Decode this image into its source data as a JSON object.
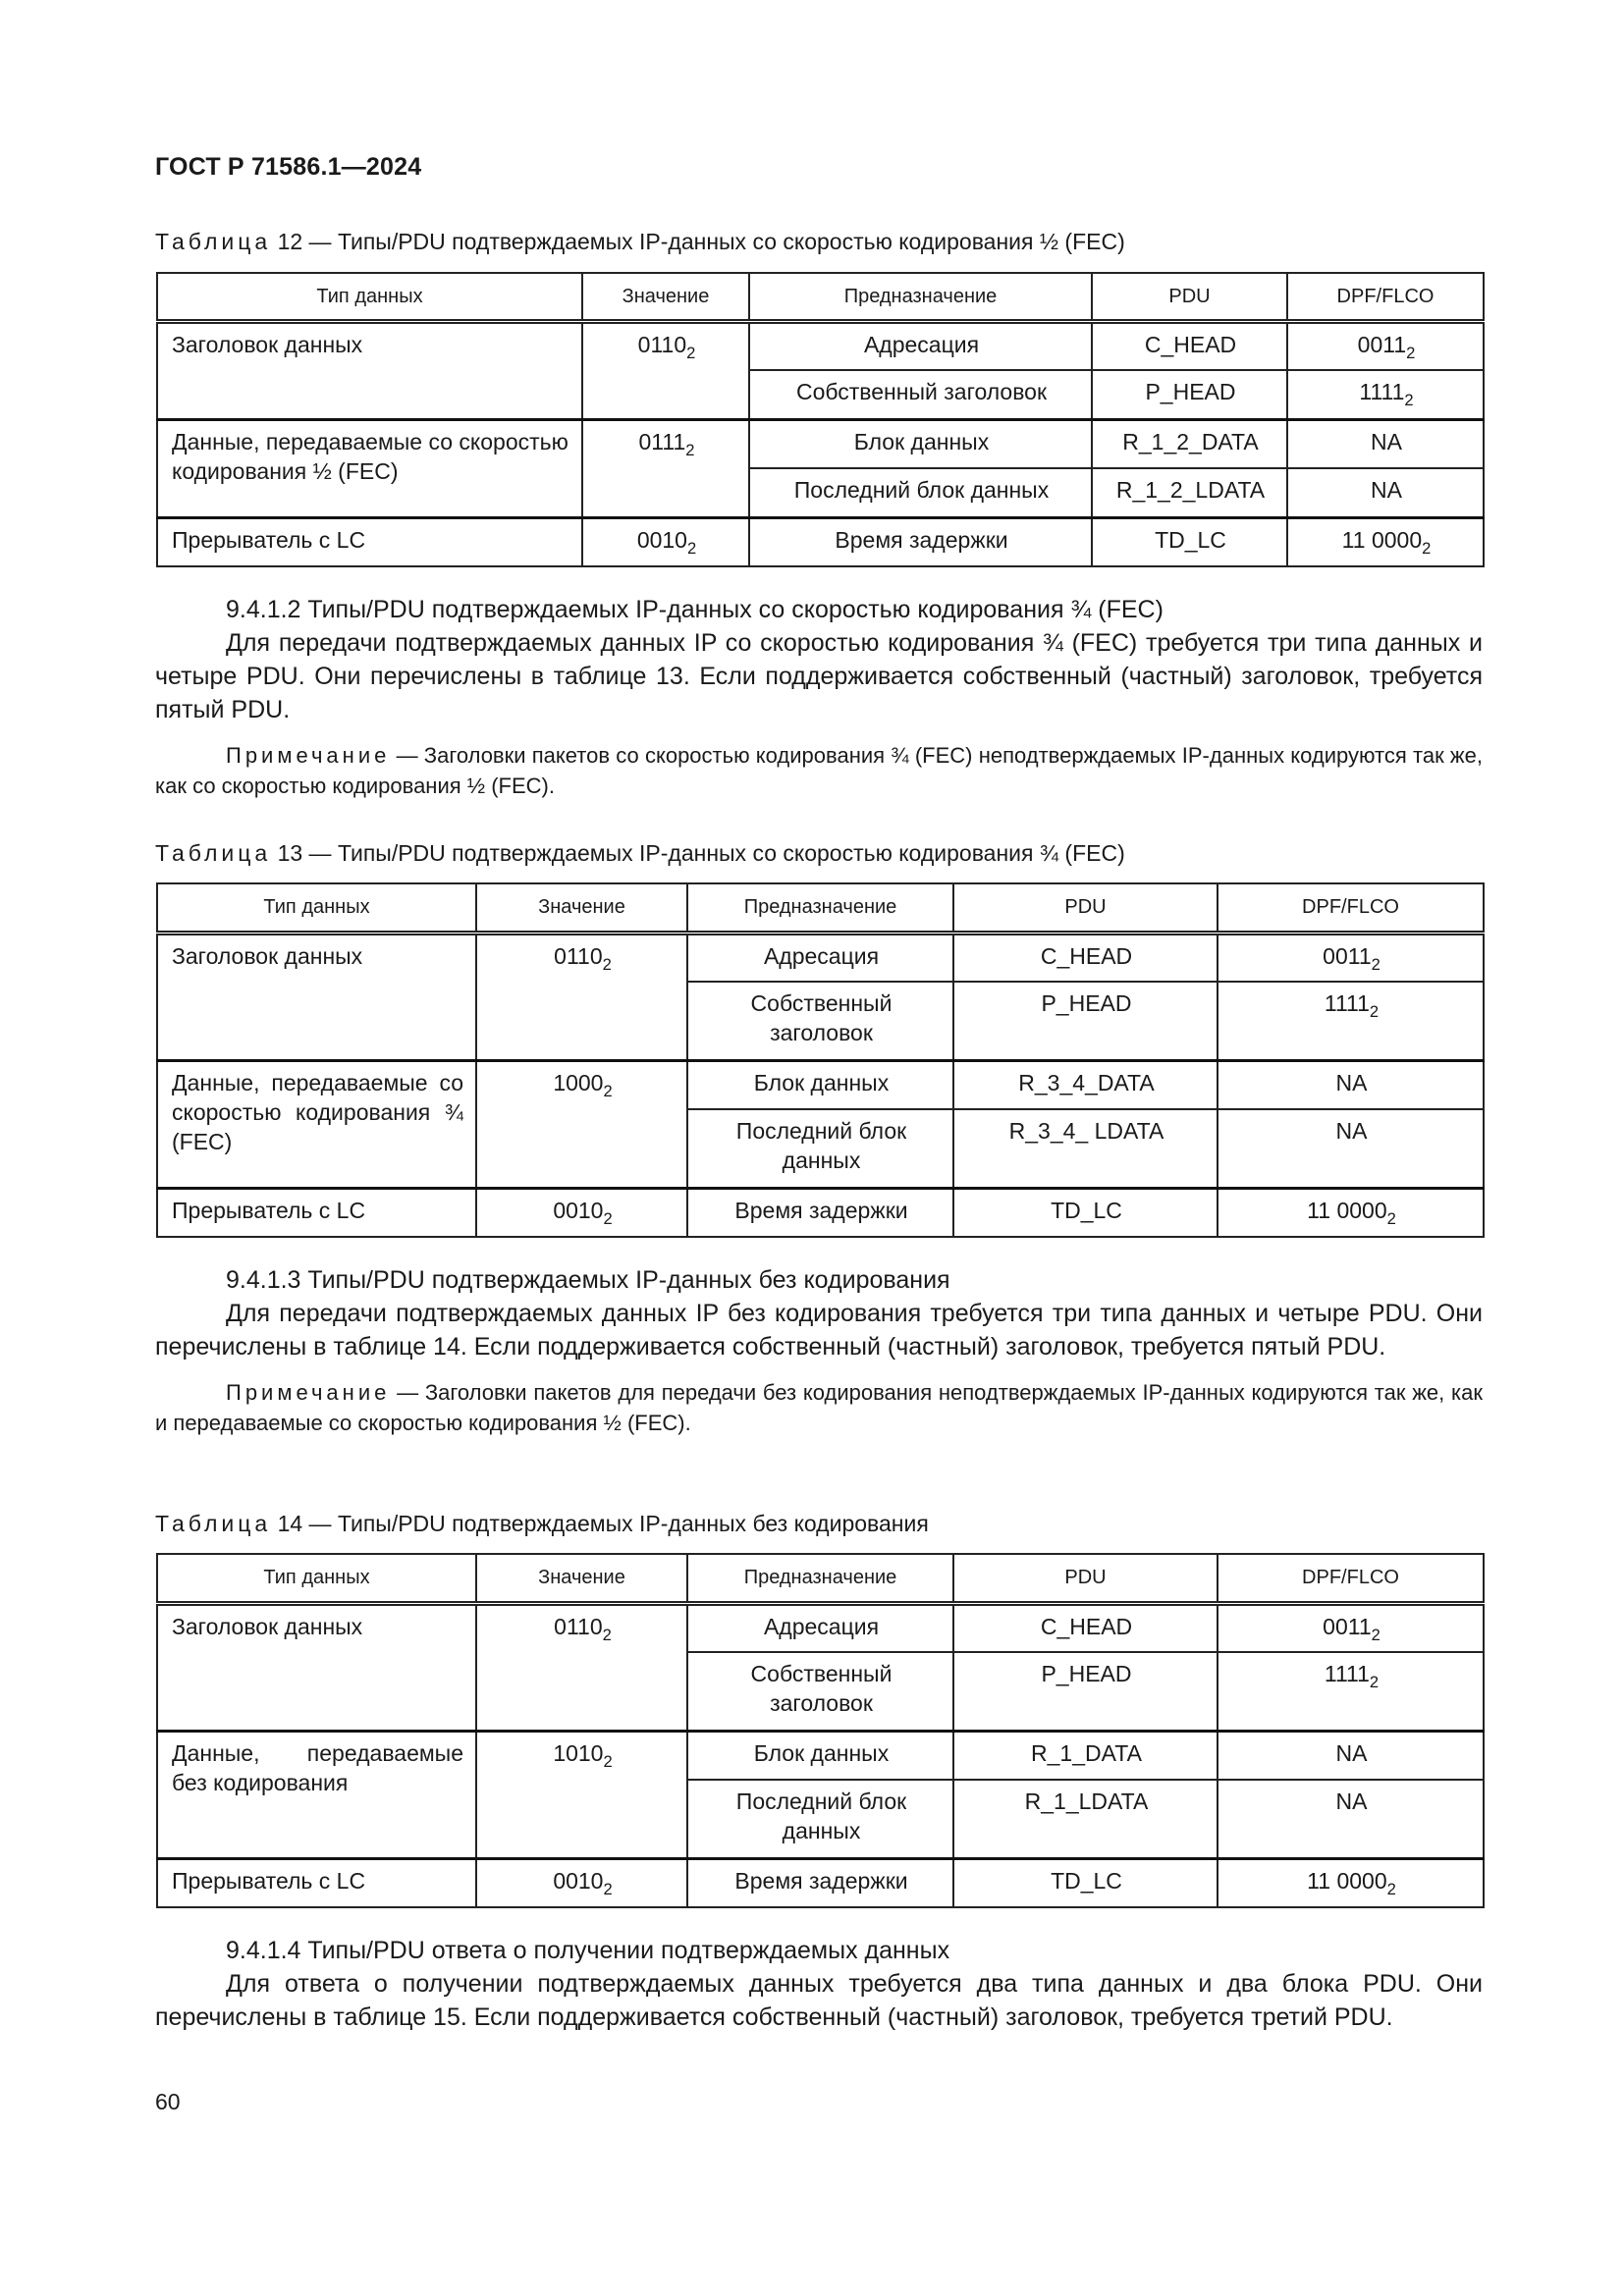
{
  "header": {
    "doc_code": "ГОСТ Р 71586.1—2024"
  },
  "tables": [
    {
      "label": "Таблица",
      "caption": " 12 — Типы/PDU подтверждаемых IP-данных со скоростью кодирования ½ (FEC)",
      "headers": [
        "Тип данных",
        "Значение",
        "Предназначение",
        "PDU",
        "DPF/FLCO"
      ],
      "groups": [
        {
          "type": "Заголовок данных",
          "value": "0110",
          "value_sub": "2",
          "items": [
            {
              "purpose": "Адресация",
              "pdu": "C_HEAD",
              "dpf": "0011",
              "dpf_sub": "2"
            },
            {
              "purpose": "Собственный заголовок",
              "pdu": "P_HEAD",
              "dpf": "1111",
              "dpf_sub": "2"
            }
          ]
        },
        {
          "type": "Данные, передаваемые со скоростью кодирования ½ (FEC)",
          "value": "0111",
          "value_sub": "2",
          "items": [
            {
              "purpose": "Блок данных",
              "pdu": "R_1_2_DATA",
              "dpf": "NA",
              "dpf_sub": ""
            },
            {
              "purpose": "Последний блок данных",
              "pdu": "R_1_2_LDATA",
              "dpf": "NA",
              "dpf_sub": ""
            }
          ]
        },
        {
          "type": "Прерыватель с LC",
          "value": "0010",
          "value_sub": "2",
          "items": [
            {
              "purpose": "Время задержки",
              "pdu": "TD_LC",
              "dpf": "11 0000",
              "dpf_sub": "2"
            }
          ]
        }
      ]
    },
    {
      "label": "Таблица",
      "caption": " 13 — Типы/PDU подтверждаемых IP-данных со скоростью кодирования ¾ (FEC)",
      "headers": [
        "Тип данных",
        "Значение",
        "Предназначение",
        "PDU",
        "DPF/FLCO"
      ],
      "groups": [
        {
          "type": "Заголовок данных",
          "value": "0110",
          "value_sub": "2",
          "items": [
            {
              "purpose": "Адресация",
              "pdu": "C_HEAD",
              "dpf": "0011",
              "dpf_sub": "2"
            },
            {
              "purpose": "Собственный заголовок",
              "pdu": "P_HEAD",
              "dpf": "1111",
              "dpf_sub": "2"
            }
          ]
        },
        {
          "type": "Данные, передаваемые со скоростью кодирования ¾ (FEC)",
          "value": "1000",
          "value_sub": "2",
          "items": [
            {
              "purpose": "Блок данных",
              "pdu": "R_3_4_DATA",
              "dpf": "NA",
              "dpf_sub": ""
            },
            {
              "purpose": "Последний блок данных",
              "pdu": "R_3_4_ LDATA",
              "dpf": "NA",
              "dpf_sub": ""
            }
          ]
        },
        {
          "type": "Прерыватель с LC",
          "value": "0010",
          "value_sub": "2",
          "items": [
            {
              "purpose": "Время задержки",
              "pdu": "TD_LC",
              "dpf": "11 0000",
              "dpf_sub": "2"
            }
          ]
        }
      ]
    },
    {
      "label": "Таблица",
      "caption": " 14 — Типы/PDU подтверждаемых IP-данных без кодирования",
      "headers": [
        "Тип данных",
        "Значение",
        "Предназначение",
        "PDU",
        "DPF/FLCO"
      ],
      "groups": [
        {
          "type": "Заголовок данных",
          "value": "0110",
          "value_sub": "2",
          "items": [
            {
              "purpose": "Адресация",
              "pdu": "C_HEAD",
              "dpf": "0011",
              "dpf_sub": "2"
            },
            {
              "purpose": "Собственный заголовок",
              "pdu": "P_HEAD",
              "dpf": "1111",
              "dpf_sub": "2"
            }
          ]
        },
        {
          "type": "Данные, передаваемые без кодирования",
          "value": "1010",
          "value_sub": "2",
          "items": [
            {
              "purpose": "Блок данных",
              "pdu": "R_1_DATA",
              "dpf": "NA",
              "dpf_sub": ""
            },
            {
              "purpose": "Последний блок данных",
              "pdu": "R_1_LDATA",
              "dpf": "NA",
              "dpf_sub": ""
            }
          ]
        },
        {
          "type": "Прерыватель с LC",
          "value": "0010",
          "value_sub": "2",
          "items": [
            {
              "purpose": "Время задержки",
              "pdu": "TD_LC",
              "dpf": "11 0000",
              "dpf_sub": "2"
            }
          ]
        }
      ]
    }
  ],
  "sections": [
    {
      "heading": "9.4.1.2 Типы/PDU подтверждаемых IP-данных со скоростью кодирования ¾ (FEC)",
      "body": "Для передачи подтверждаемых данных IP со скоростью кодирования ¾ (FEC) требуется три типа данных и четыре PDU. Они перечислены в таблице 13. Если поддерживается собственный (частный) заголовок, требуется пятый PDU.",
      "note_label": "Примечание",
      "note": " — Заголовки пакетов со скоростью кодирования ¾ (FEC) неподтверждаемых IP-данных кодируются так же, как со скоростью кодирования ½ (FEC)."
    },
    {
      "heading": "9.4.1.3 Типы/PDU подтверждаемых IP-данных без кодирования",
      "body": "Для передачи подтверждаемых данных IP без кодирования требуется три типа данных и четыре PDU. Они перечислены в таблице 14. Если поддерживается собственный (частный) заголовок, требуется пятый PDU.",
      "note_label": "Примечание",
      "note": " — Заголовки пакетов для передачи без кодирования неподтверждаемых IP-данных кодируются так же, как и передаваемые со скоростью кодирования ½ (FEC)."
    },
    {
      "heading": "9.4.1.4 Типы/PDU ответа о получении подтверждаемых данных",
      "body": "Для ответа о получении подтверждаемых данных требуется два типа данных и два блока PDU. Они перечислены в таблице 15. Если поддерживается собственный (частный) заголовок, требуется третий PDU."
    }
  ],
  "footer": {
    "page_number": "60"
  }
}
